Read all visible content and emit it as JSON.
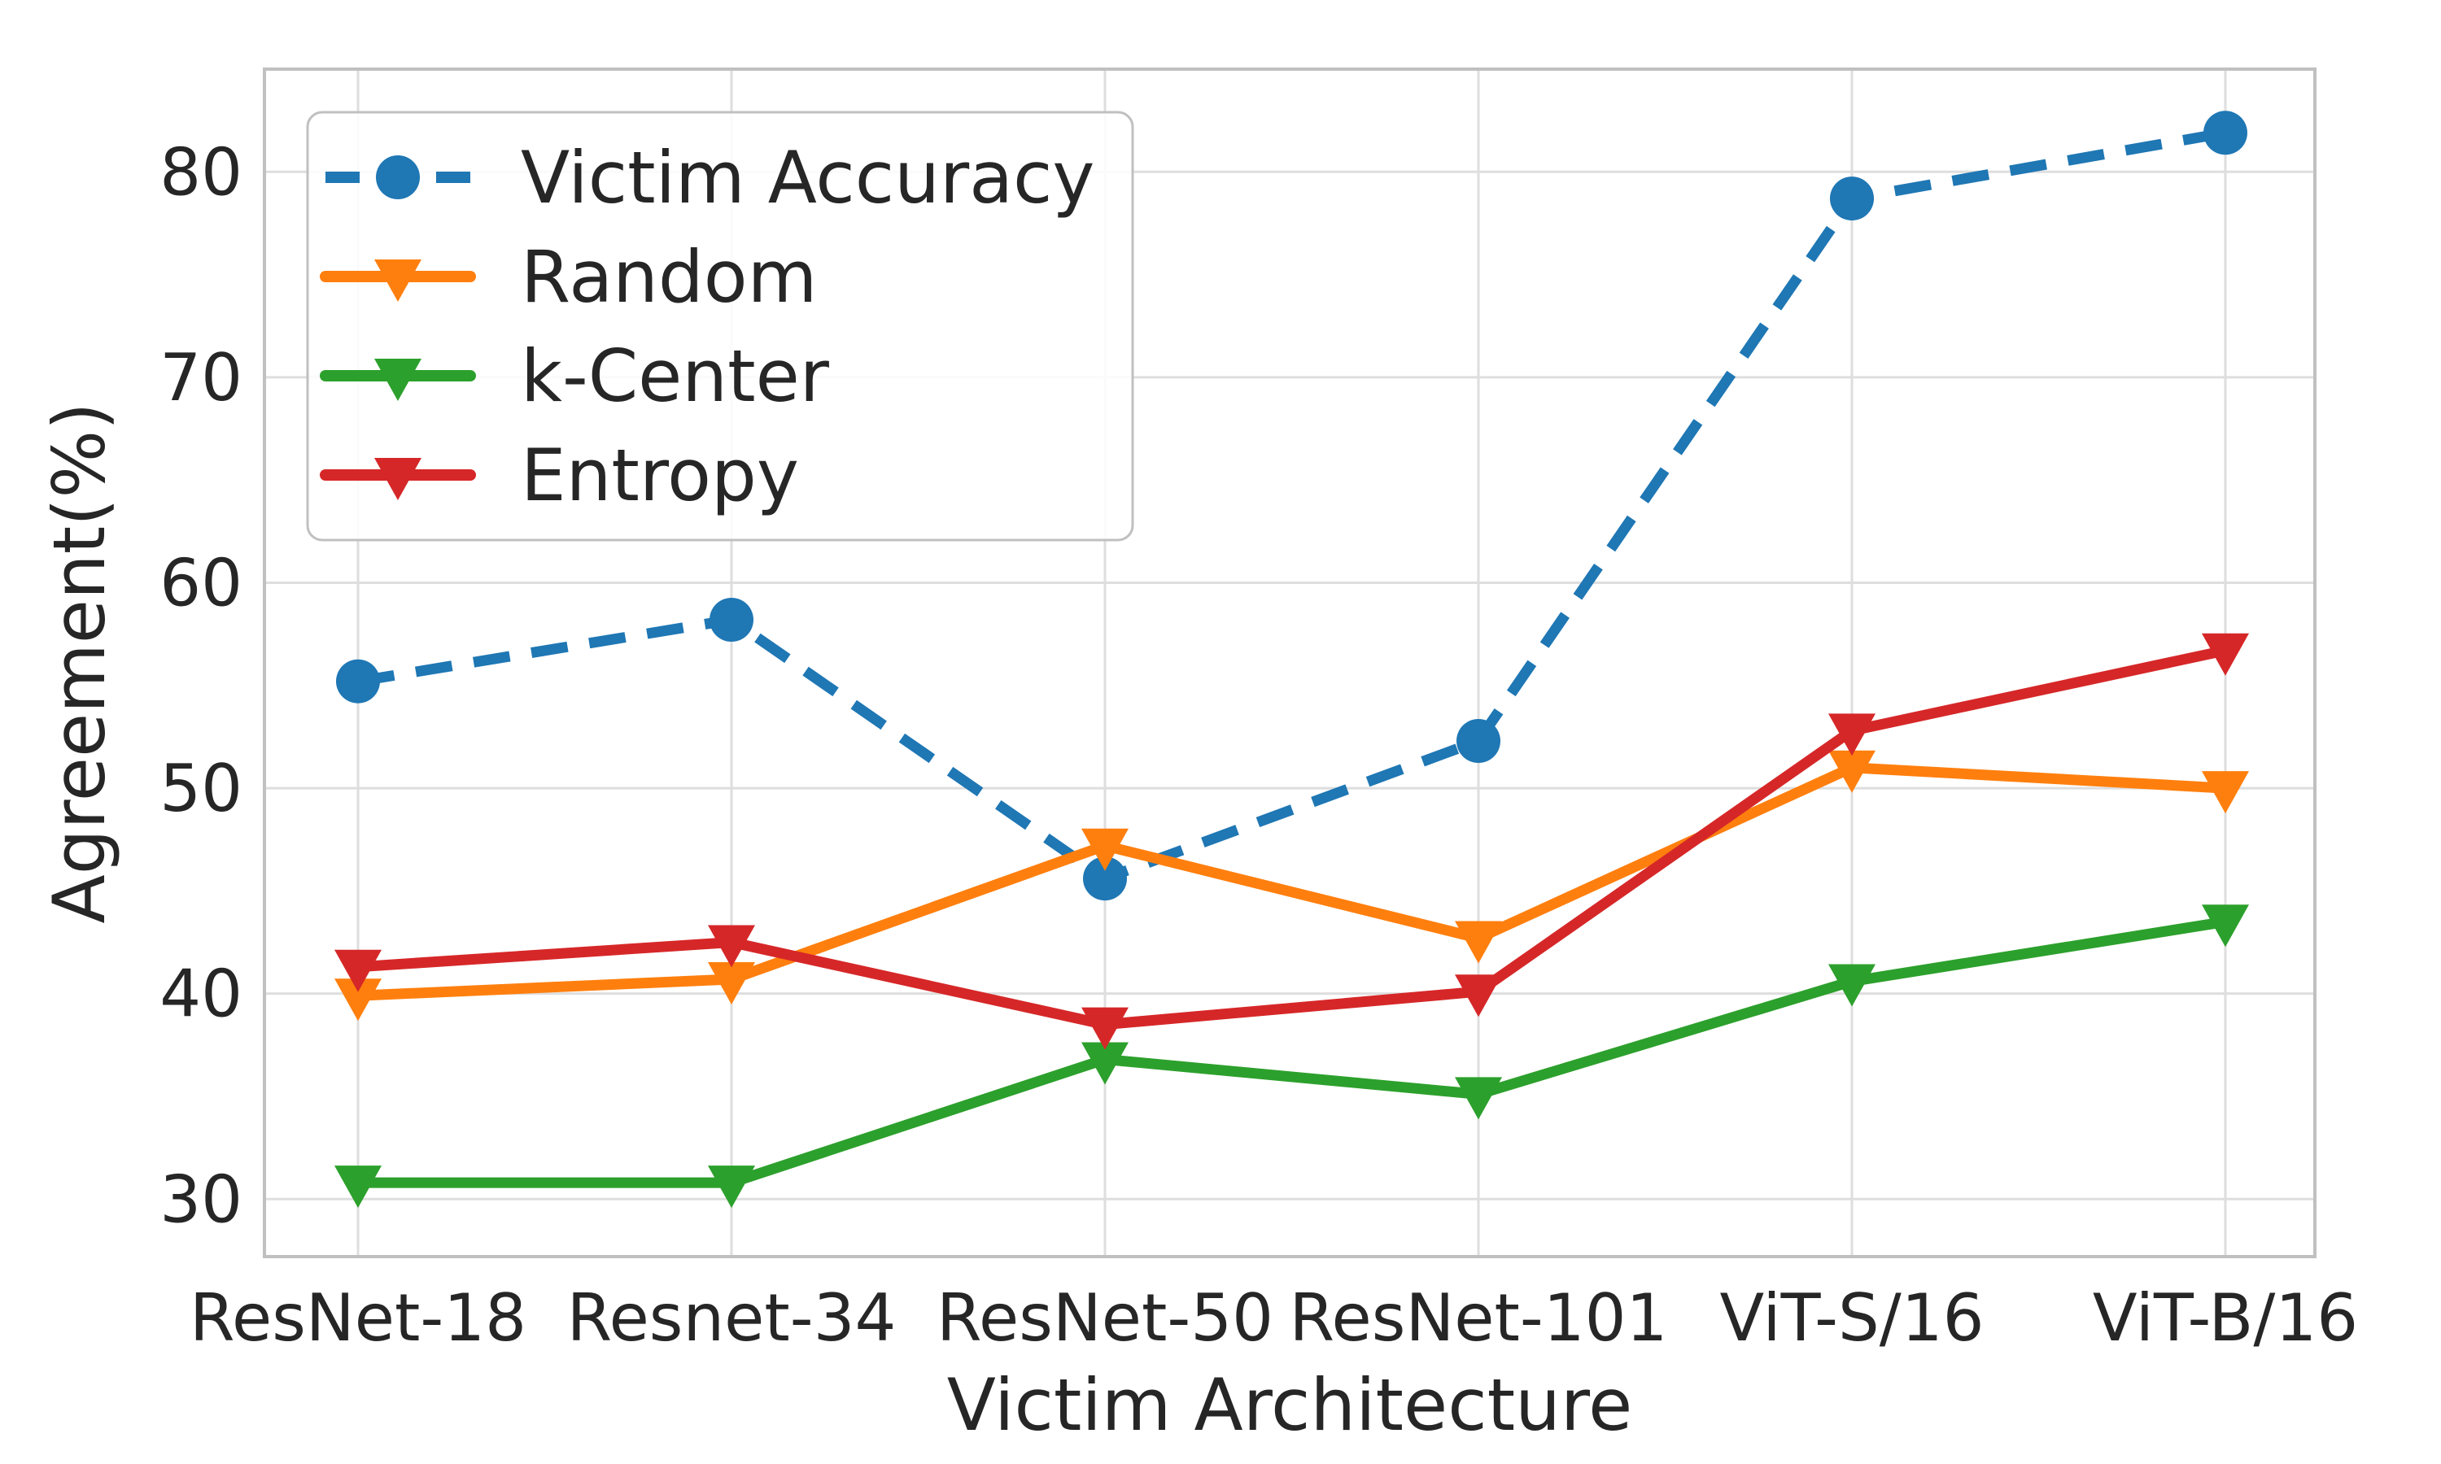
{
  "figure": {
    "background": "#ffffff",
    "text_color": "#262626",
    "grid_color": "#dedede",
    "spine_color": "#c0c0c0"
  },
  "chart_data": {
    "type": "line",
    "title": "",
    "xlabel": "Victim Architecture",
    "ylabel": "Agreement(%)",
    "categories": [
      "ResNet-18",
      "Resnet-34",
      "ResNet-50",
      "ResNet-101",
      "ViT-S/16",
      "ViT-B/16"
    ],
    "yticks": [
      30,
      40,
      50,
      60,
      70,
      80
    ],
    "ylim": [
      27.2,
      85.0
    ],
    "grid": true,
    "legend_position": "upper-left",
    "series": [
      {
        "name": "Victim Accuracy",
        "color": "#1f77b4",
        "line_style": "dashed",
        "marker": "circle",
        "values": [
          55.2,
          58.2,
          45.6,
          52.3,
          78.7,
          81.9
        ]
      },
      {
        "name": "Random",
        "color": "#ff7f0e",
        "line_style": "solid",
        "marker": "triangle-down",
        "values": [
          39.9,
          40.7,
          47.2,
          42.7,
          51.0,
          50.0
        ]
      },
      {
        "name": "k-Center",
        "color": "#2ca02c",
        "line_style": "solid",
        "marker": "triangle-down",
        "values": [
          30.8,
          30.8,
          36.8,
          35.1,
          40.6,
          43.5
        ]
      },
      {
        "name": "Entropy",
        "color": "#d62728",
        "line_style": "solid",
        "marker": "triangle-down",
        "values": [
          41.3,
          42.5,
          38.5,
          40.1,
          52.8,
          56.7
        ]
      }
    ]
  }
}
